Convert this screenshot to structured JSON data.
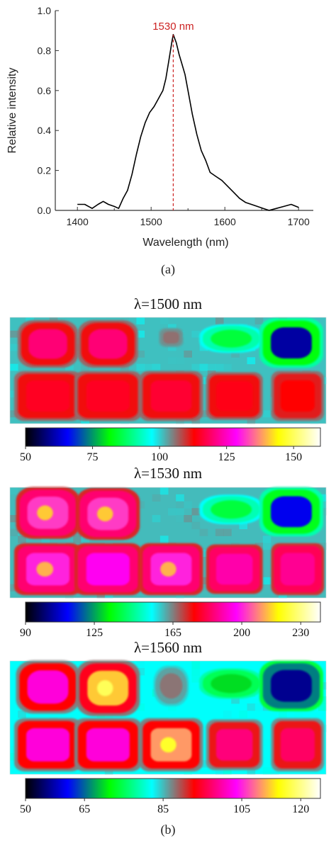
{
  "chart_data": [
    {
      "type": "line",
      "panel_label": "(a)",
      "xlabel": "Wavelength (nm)",
      "ylabel": "Relative intensity",
      "xlim": [
        1370,
        1720
      ],
      "ylim": [
        0,
        1.0
      ],
      "xticks": [
        1400,
        1500,
        1600,
        1700
      ],
      "xtick_labels": [
        "1400",
        "1500",
        "1600",
        "1700"
      ],
      "yticks": [
        0.0,
        0.2,
        0.4,
        0.6,
        0.8,
        1.0
      ],
      "ytick_labels": [
        "0.0",
        "0.2",
        "0.4",
        "0.6",
        "0.8",
        "1.0"
      ],
      "grid": false,
      "annotation": {
        "text": "1530 nm",
        "x": 1530,
        "y": 0.88,
        "color": "#cc2222"
      },
      "series": [
        {
          "color": "#000000",
          "x": [
            1400,
            1410,
            1420,
            1428,
            1435,
            1442,
            1450,
            1456,
            1462,
            1468,
            1474,
            1480,
            1486,
            1492,
            1498,
            1504,
            1510,
            1516,
            1520,
            1524,
            1528,
            1530,
            1534,
            1538,
            1542,
            1546,
            1550,
            1556,
            1562,
            1568,
            1574,
            1580,
            1588,
            1596,
            1604,
            1612,
            1620,
            1628,
            1636,
            1644,
            1652,
            1660,
            1670,
            1680,
            1690,
            1700
          ],
          "y": [
            0.03,
            0.03,
            0.01,
            0.03,
            0.045,
            0.03,
            0.02,
            0.01,
            0.06,
            0.1,
            0.18,
            0.28,
            0.37,
            0.44,
            0.49,
            0.52,
            0.56,
            0.6,
            0.66,
            0.75,
            0.84,
            0.88,
            0.84,
            0.78,
            0.73,
            0.68,
            0.6,
            0.48,
            0.38,
            0.3,
            0.25,
            0.19,
            0.17,
            0.15,
            0.12,
            0.09,
            0.06,
            0.04,
            0.03,
            0.02,
            0.01,
            0.0,
            0.01,
            0.02,
            0.03,
            0.015
          ]
        }
      ]
    },
    {
      "type": "heatmap",
      "title": "λ=1500 nm",
      "colorbar": {
        "ticks": [
          50,
          75,
          100,
          125,
          150
        ],
        "range": [
          50,
          160
        ]
      },
      "grid_values": [
        [
          101,
          101,
          101,
          101,
          101,
          101,
          101,
          101,
          101,
          101,
          101,
          101,
          101,
          101,
          101,
          101,
          101,
          101,
          101,
          101,
          101,
          101,
          101,
          101,
          101,
          101,
          101,
          101,
          101,
          101,
          101,
          101,
          101,
          101,
          101,
          101,
          101,
          101,
          101,
          101
        ],
        [
          101,
          101,
          101,
          101,
          101,
          101,
          101,
          101,
          101,
          101,
          101,
          101,
          101,
          101,
          101,
          101,
          101,
          101,
          101,
          101,
          101,
          101,
          101,
          101,
          101,
          101,
          101,
          101,
          101,
          101,
          101,
          101,
          101,
          101,
          101,
          101,
          101,
          101,
          101,
          101
        ],
        [
          101,
          101,
          101,
          101,
          101,
          101,
          101,
          101,
          101,
          101,
          101,
          101,
          101,
          101,
          101,
          101,
          101,
          101,
          101,
          101,
          101,
          101,
          101,
          101,
          101,
          101,
          101,
          101,
          101,
          101,
          101,
          101,
          101,
          101,
          101,
          101,
          101,
          101,
          101,
          101
        ],
        [
          101,
          101,
          101,
          101,
          101,
          101,
          101,
          101,
          101,
          101,
          101,
          101,
          101,
          101,
          101,
          101,
          101,
          101,
          101,
          101,
          101,
          101,
          101,
          101,
          101,
          101,
          101,
          101,
          101,
          101,
          101,
          101,
          101,
          101,
          101,
          101,
          101,
          101,
          101,
          101
        ],
        [
          101,
          101,
          101,
          101,
          101,
          101,
          101,
          101,
          101,
          101,
          101,
          101,
          101,
          101,
          101,
          101,
          101,
          101,
          101,
          101,
          101,
          101,
          101,
          101,
          101,
          101,
          101,
          101,
          101,
          101,
          101,
          101,
          101,
          101,
          101,
          101,
          101,
          101,
          101,
          101
        ],
        [
          101,
          101,
          101,
          101,
          101,
          101,
          101,
          101,
          101,
          101,
          101,
          101,
          101,
          101,
          101,
          101,
          101,
          101,
          101,
          101,
          101,
          101,
          101,
          101,
          101,
          101,
          101,
          101,
          101,
          101,
          101,
          101,
          101,
          101,
          101,
          101,
          101,
          101,
          101,
          101
        ],
        [
          101,
          101,
          101,
          101,
          101,
          101,
          101,
          101,
          101,
          101,
          101,
          101,
          101,
          101,
          101,
          101,
          101,
          101,
          101,
          101,
          101,
          101,
          101,
          101,
          101,
          101,
          101,
          101,
          101,
          101,
          101,
          101,
          101,
          101,
          101,
          101,
          101,
          101,
          101,
          101
        ],
        [
          101,
          101,
          101,
          101,
          101,
          101,
          101,
          101,
          101,
          101,
          101,
          101,
          101,
          101,
          101,
          101,
          101,
          101,
          101,
          101,
          101,
          101,
          101,
          101,
          101,
          101,
          101,
          101,
          101,
          101,
          101,
          101,
          101,
          101,
          101,
          101,
          101,
          101,
          101,
          101
        ],
        [
          101,
          101,
          101,
          101,
          101,
          101,
          101,
          101,
          101,
          101,
          101,
          101,
          101,
          101,
          101,
          101,
          101,
          101,
          101,
          101,
          101,
          101,
          101,
          101,
          101,
          101,
          101,
          101,
          101,
          101,
          101,
          101,
          101,
          101,
          101,
          101,
          101,
          101,
          101,
          101
        ],
        [
          101,
          101,
          101,
          101,
          101,
          101,
          101,
          101,
          101,
          101,
          101,
          101,
          101,
          101,
          101,
          101,
          101,
          101,
          101,
          101,
          101,
          101,
          101,
          101,
          101,
          101,
          101,
          101,
          101,
          101,
          101,
          101,
          101,
          101,
          101,
          101,
          101,
          101,
          101,
          101
        ],
        [
          101,
          101,
          101,
          101,
          101,
          101,
          101,
          101,
          101,
          101,
          101,
          101,
          101,
          101,
          101,
          101,
          101,
          101,
          101,
          101,
          101,
          101,
          101,
          101,
          101,
          101,
          101,
          101,
          101,
          101,
          101,
          101,
          101,
          101,
          101,
          101,
          101,
          101,
          101,
          101
        ],
        [
          101,
          101,
          101,
          101,
          101,
          101,
          101,
          101,
          101,
          101,
          101,
          101,
          101,
          101,
          101,
          101,
          101,
          101,
          101,
          101,
          101,
          101,
          101,
          101,
          101,
          101,
          101,
          101,
          101,
          101,
          101,
          101,
          101,
          101,
          101,
          101,
          101,
          101,
          101,
          101
        ],
        [
          101,
          101,
          101,
          101,
          101,
          101,
          101,
          101,
          101,
          101,
          101,
          101,
          101,
          101,
          101,
          101,
          101,
          101,
          101,
          101,
          101,
          101,
          101,
          101,
          101,
          101,
          101,
          101,
          101,
          101,
          101,
          101,
          101,
          101,
          101,
          101,
          101,
          101,
          101,
          101
        ],
        [
          101,
          101,
          101,
          101,
          101,
          101,
          101,
          101,
          101,
          101,
          101,
          101,
          101,
          101,
          101,
          101,
          101,
          101,
          101,
          101,
          101,
          101,
          101,
          101,
          101,
          101,
          101,
          101,
          101,
          101,
          101,
          101,
          101,
          101,
          101,
          101,
          101,
          101,
          101,
          101
        ],
        [
          101,
          101,
          101,
          101,
          101,
          101,
          101,
          101,
          101,
          101,
          101,
          101,
          101,
          101,
          101,
          101,
          101,
          101,
          101,
          101,
          101,
          101,
          101,
          101,
          101,
          101,
          101,
          101,
          101,
          101,
          101,
          101,
          101,
          101,
          101,
          101,
          101,
          101,
          101,
          101
        ],
        [
          101,
          101,
          101,
          101,
          101,
          101,
          101,
          101,
          101,
          101,
          101,
          101,
          101,
          101,
          101,
          101,
          101,
          101,
          101,
          101,
          101,
          101,
          101,
          101,
          101,
          101,
          101,
          101,
          101,
          101,
          101,
          101,
          101,
          101,
          101,
          101,
          101,
          101,
          101,
          101
        ]
      ],
      "blobs": [
        {
          "cx": 0.12,
          "cy": 0.25,
          "rx": 0.085,
          "ry": 0.2,
          "core": 120,
          "edge": 112,
          "shape": "round"
        },
        {
          "cx": 0.31,
          "cy": 0.25,
          "rx": 0.085,
          "ry": 0.2,
          "core": 120,
          "edge": 112,
          "shape": "round"
        },
        {
          "cx": 0.51,
          "cy": 0.19,
          "rx": 0.035,
          "ry": 0.08,
          "core": 106,
          "edge": 104,
          "shape": "round"
        },
        {
          "cx": 0.7,
          "cy": 0.2,
          "rx": 0.09,
          "ry": 0.12,
          "core": 85,
          "edge": 92,
          "shape": "soft"
        },
        {
          "cx": 0.89,
          "cy": 0.24,
          "rx": 0.09,
          "ry": 0.21,
          "core": 60,
          "edge": 82,
          "shape": "round"
        },
        {
          "cx": 0.12,
          "cy": 0.74,
          "rx": 0.095,
          "ry": 0.21,
          "core": 115,
          "edge": 112,
          "shape": "square"
        },
        {
          "cx": 0.31,
          "cy": 0.74,
          "rx": 0.095,
          "ry": 0.21,
          "core": 115,
          "edge": 112,
          "shape": "square"
        },
        {
          "cx": 0.51,
          "cy": 0.74,
          "rx": 0.09,
          "ry": 0.21,
          "core": 116,
          "edge": 112,
          "shape": "square"
        },
        {
          "cx": 0.71,
          "cy": 0.74,
          "rx": 0.08,
          "ry": 0.2,
          "core": 114,
          "edge": 112,
          "shape": "square"
        },
        {
          "cx": 0.91,
          "cy": 0.74,
          "rx": 0.075,
          "ry": 0.21,
          "core": 113,
          "edge": 111,
          "shape": "square"
        }
      ],
      "background": 101
    },
    {
      "type": "heatmap",
      "title": "λ=1530 nm",
      "colorbar": {
        "ticks": [
          90,
          125,
          165,
          200,
          230
        ],
        "range": [
          90,
          240
        ]
      },
      "blobs": [
        {
          "cx": 0.12,
          "cy": 0.23,
          "rx": 0.09,
          "ry": 0.21,
          "core": 202,
          "edge": 185,
          "shape": "round"
        },
        {
          "cx": 0.31,
          "cy": 0.24,
          "rx": 0.09,
          "ry": 0.21,
          "core": 202,
          "edge": 185,
          "shape": "round"
        },
        {
          "cx": 0.7,
          "cy": 0.2,
          "rx": 0.09,
          "ry": 0.12,
          "core": 138,
          "edge": 148,
          "shape": "soft"
        },
        {
          "cx": 0.89,
          "cy": 0.22,
          "rx": 0.09,
          "ry": 0.2,
          "core": 110,
          "edge": 135,
          "shape": "round"
        },
        {
          "cx": 0.12,
          "cy": 0.74,
          "rx": 0.095,
          "ry": 0.21,
          "core": 200,
          "edge": 185,
          "shape": "square"
        },
        {
          "cx": 0.31,
          "cy": 0.74,
          "rx": 0.095,
          "ry": 0.21,
          "core": 196,
          "edge": 185,
          "shape": "square"
        },
        {
          "cx": 0.51,
          "cy": 0.74,
          "rx": 0.09,
          "ry": 0.21,
          "core": 200,
          "edge": 185,
          "shape": "square"
        },
        {
          "cx": 0.71,
          "cy": 0.74,
          "rx": 0.08,
          "ry": 0.2,
          "core": 190,
          "edge": 184,
          "shape": "square"
        },
        {
          "cx": 0.91,
          "cy": 0.74,
          "rx": 0.075,
          "ry": 0.21,
          "core": 188,
          "edge": 183,
          "shape": "square"
        }
      ],
      "background": 160
    },
    {
      "type": "heatmap",
      "title": "λ=1560 nm",
      "colorbar": {
        "ticks": [
          50,
          65,
          85,
          105,
          120
        ],
        "range": [
          50,
          125
        ]
      },
      "blobs": [
        {
          "cx": 0.12,
          "cy": 0.23,
          "rx": 0.09,
          "ry": 0.21,
          "core": 102,
          "edge": 93,
          "shape": "round"
        },
        {
          "cx": 0.31,
          "cy": 0.24,
          "rx": 0.09,
          "ry": 0.22,
          "core": 112,
          "edge": 94,
          "shape": "round"
        },
        {
          "cx": 0.51,
          "cy": 0.22,
          "rx": 0.05,
          "ry": 0.16,
          "core": 88,
          "edge": 86,
          "shape": "soft"
        },
        {
          "cx": 0.7,
          "cy": 0.2,
          "rx": 0.09,
          "ry": 0.12,
          "core": 70,
          "edge": 75,
          "shape": "soft"
        },
        {
          "cx": 0.89,
          "cy": 0.22,
          "rx": 0.09,
          "ry": 0.2,
          "core": 56,
          "edge": 66,
          "shape": "round"
        },
        {
          "cx": 0.12,
          "cy": 0.74,
          "rx": 0.095,
          "ry": 0.21,
          "core": 102,
          "edge": 93,
          "shape": "square"
        },
        {
          "cx": 0.31,
          "cy": 0.74,
          "rx": 0.095,
          "ry": 0.21,
          "core": 102,
          "edge": 93,
          "shape": "square"
        },
        {
          "cx": 0.51,
          "cy": 0.74,
          "rx": 0.09,
          "ry": 0.21,
          "core": 110,
          "edge": 93,
          "shape": "square"
        },
        {
          "cx": 0.71,
          "cy": 0.74,
          "rx": 0.08,
          "ry": 0.2,
          "core": 98,
          "edge": 92,
          "shape": "square"
        },
        {
          "cx": 0.91,
          "cy": 0.74,
          "rx": 0.075,
          "ry": 0.21,
          "core": 97,
          "edge": 92,
          "shape": "square"
        }
      ],
      "background": 82
    }
  ],
  "captions": {
    "a": "(a)",
    "b": "(b)"
  },
  "colormap": [
    "#000000",
    "#0000ff",
    "#00ff00",
    "#00ffff",
    "#ff0000",
    "#ff00ff",
    "#ffff00",
    "#ffffff"
  ]
}
